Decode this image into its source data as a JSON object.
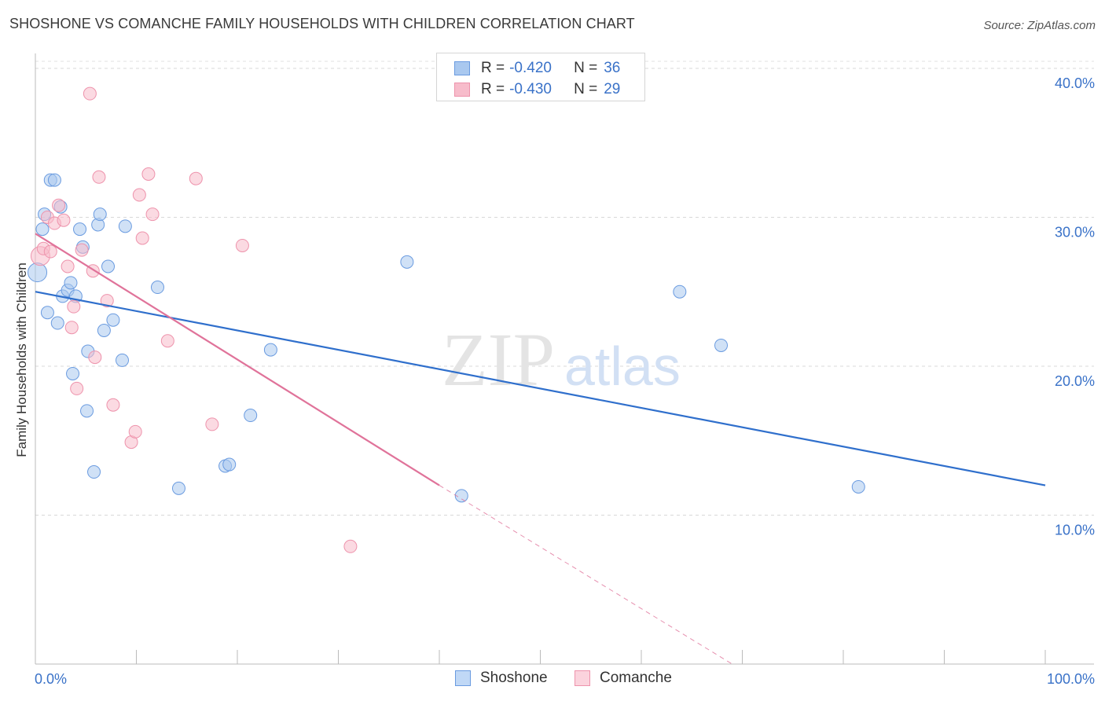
{
  "title": "SHOSHONE VS COMANCHE FAMILY HOUSEHOLDS WITH CHILDREN CORRELATION CHART",
  "source": "Source: ZipAtlas.com",
  "watermark": {
    "zip": "ZIP",
    "atlas": "atlas"
  },
  "legend": {
    "r_label": "R =",
    "n_label": "N =",
    "rows": [
      {
        "series": "Shoshone",
        "r": "-0.420",
        "n": "36"
      },
      {
        "series": "Comanche",
        "r": "-0.430",
        "n": "29"
      }
    ]
  },
  "colors": {
    "shoshone_fill": "#a9c8ef",
    "shoshone_stroke": "#6a9be0",
    "shoshone_line": "#2f6fcc",
    "comanche_fill": "#f7bccb",
    "comanche_stroke": "#ee93ac",
    "comanche_line": "#e0739a",
    "axis_text": "#3a72c8",
    "grid": "#d8d8d8"
  },
  "chart_data": {
    "type": "scatter",
    "xlabel": "",
    "ylabel": "Family Households with Children",
    "xlim": [
      0,
      100
    ],
    "ylim": [
      0,
      41
    ],
    "x_tick_labels": [
      "0.0%",
      "100.0%"
    ],
    "y_ticks": [
      10,
      20,
      30,
      40
    ],
    "y_tick_labels": [
      "10.0%",
      "20.0%",
      "30.0%",
      "40.0%"
    ],
    "grid": "horizontal-dashed",
    "legend_position": "top-center",
    "series": [
      {
        "name": "Shoshone",
        "points": [
          [
            0.2,
            26.3
          ],
          [
            0.7,
            29.2
          ],
          [
            0.9,
            30.2
          ],
          [
            1.2,
            23.6
          ],
          [
            1.5,
            32.5
          ],
          [
            1.9,
            32.5
          ],
          [
            2.2,
            22.9
          ],
          [
            2.5,
            30.7
          ],
          [
            2.7,
            24.7
          ],
          [
            3.2,
            25.1
          ],
          [
            3.5,
            25.6
          ],
          [
            3.7,
            19.5
          ],
          [
            4.0,
            24.7
          ],
          [
            4.4,
            29.2
          ],
          [
            4.7,
            28.0
          ],
          [
            5.1,
            17.0
          ],
          [
            5.2,
            21.0
          ],
          [
            5.8,
            12.9
          ],
          [
            6.2,
            29.5
          ],
          [
            6.4,
            30.2
          ],
          [
            6.8,
            22.4
          ],
          [
            7.2,
            26.7
          ],
          [
            7.7,
            23.1
          ],
          [
            8.6,
            20.4
          ],
          [
            8.9,
            29.4
          ],
          [
            12.1,
            25.3
          ],
          [
            14.2,
            11.8
          ],
          [
            18.8,
            13.3
          ],
          [
            19.2,
            13.4
          ],
          [
            21.3,
            16.7
          ],
          [
            23.3,
            21.1
          ],
          [
            36.8,
            27.0
          ],
          [
            42.2,
            11.3
          ],
          [
            63.8,
            25.0
          ],
          [
            67.9,
            21.4
          ],
          [
            81.5,
            11.9
          ]
        ],
        "trend": {
          "x": [
            0,
            100
          ],
          "y": [
            25.0,
            12.0
          ],
          "style": "solid"
        }
      },
      {
        "name": "Comanche",
        "points": [
          [
            0.5,
            27.4
          ],
          [
            0.8,
            27.9
          ],
          [
            1.2,
            30.0
          ],
          [
            1.5,
            27.7
          ],
          [
            1.9,
            29.6
          ],
          [
            2.3,
            30.8
          ],
          [
            2.8,
            29.8
          ],
          [
            3.2,
            26.7
          ],
          [
            3.6,
            22.6
          ],
          [
            3.8,
            24.0
          ],
          [
            4.1,
            18.5
          ],
          [
            4.6,
            27.8
          ],
          [
            5.4,
            38.3
          ],
          [
            5.7,
            26.4
          ],
          [
            5.9,
            20.6
          ],
          [
            6.3,
            32.7
          ],
          [
            7.1,
            24.4
          ],
          [
            7.7,
            17.4
          ],
          [
            9.5,
            14.9
          ],
          [
            9.9,
            15.6
          ],
          [
            10.3,
            31.5
          ],
          [
            10.6,
            28.6
          ],
          [
            11.2,
            32.9
          ],
          [
            11.6,
            30.2
          ],
          [
            13.1,
            21.7
          ],
          [
            15.9,
            32.6
          ],
          [
            17.5,
            16.1
          ],
          [
            20.5,
            28.1
          ],
          [
            31.2,
            7.9
          ]
        ],
        "trend": {
          "x": [
            0,
            40
          ],
          "y": [
            28.9,
            12.0
          ],
          "style": "solid",
          "extension": {
            "x": [
              40,
              69
            ],
            "y": [
              12.0,
              0
            ],
            "style": "dashed"
          }
        }
      }
    ]
  }
}
